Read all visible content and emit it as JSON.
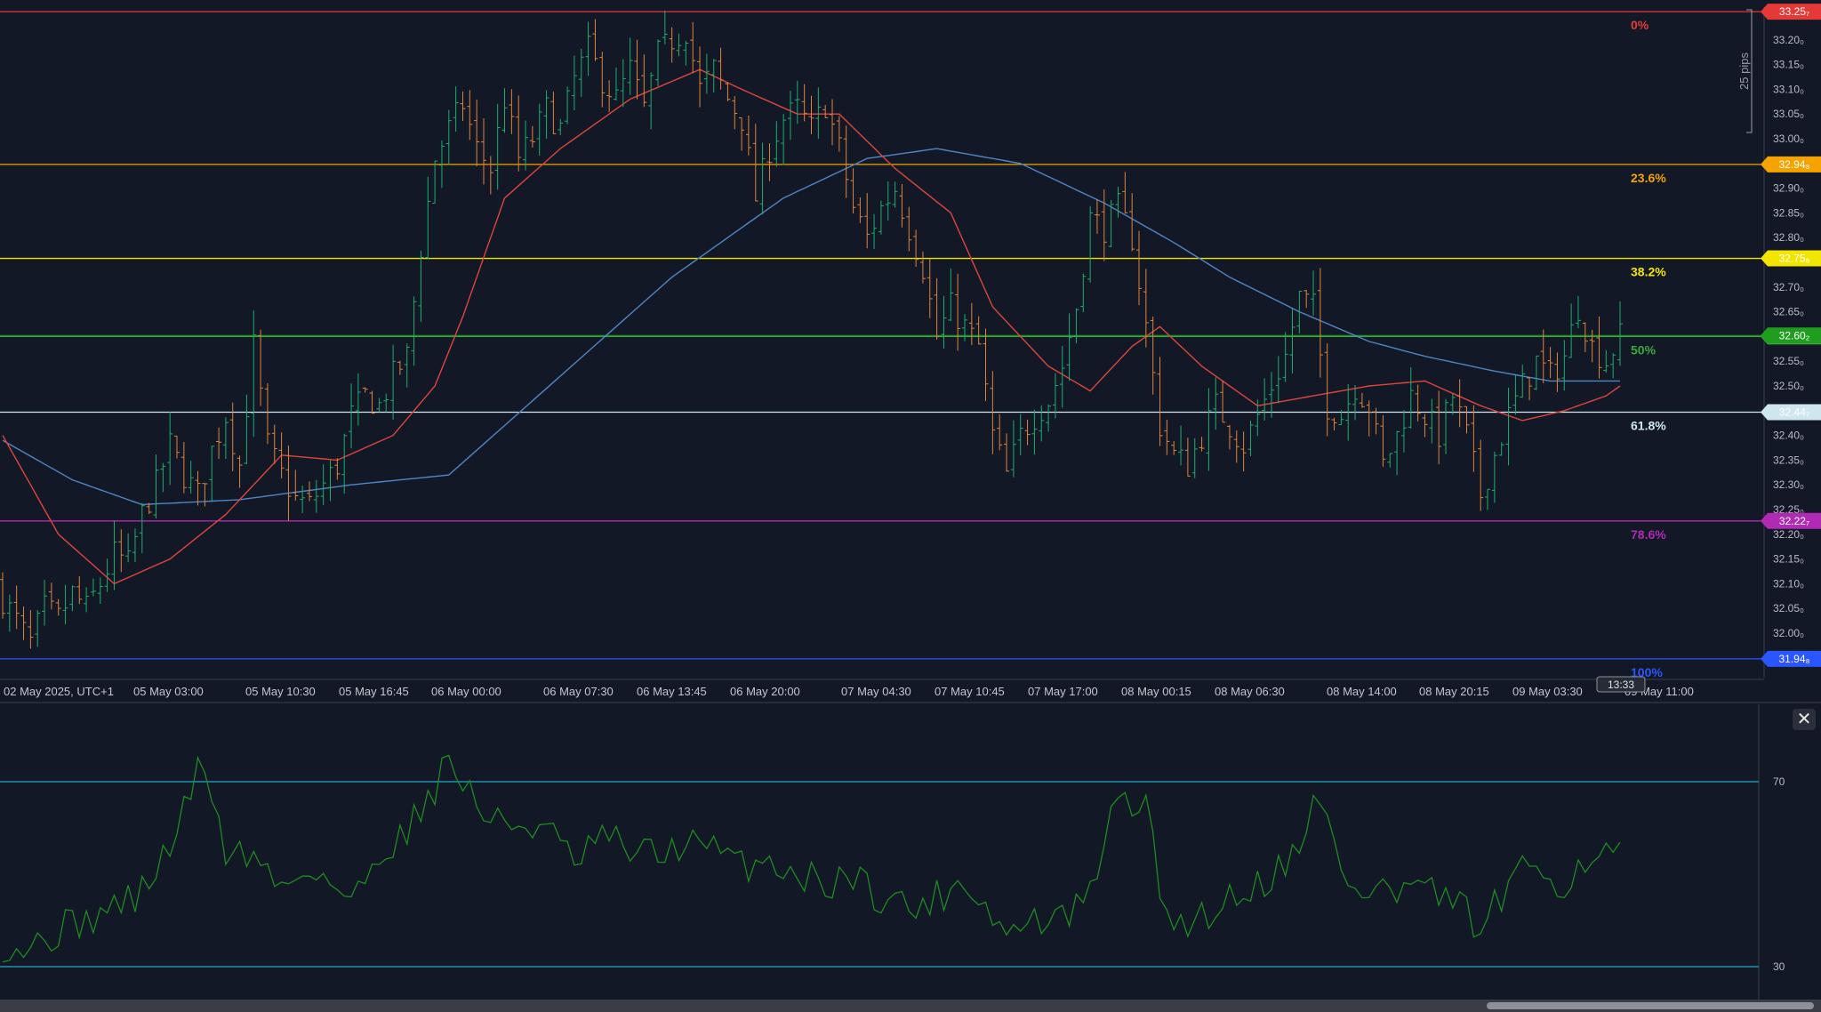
{
  "chart_data": [
    {
      "type": "candlestick",
      "title": "",
      "timezone_label": "02 May 2025, UTC+1",
      "x_tick_labels": [
        "02 May 2025, UTC+1",
        "05 May 03:00",
        "05 May 10:30",
        "05 May 16:45",
        "06 May 00:00",
        "06 May 07:30",
        "06 May 13:45",
        "06 May 20:00",
        "07 May 04:30",
        "07 May 10:45",
        "07 May 17:00",
        "08 May 00:15",
        "08 May 06:30",
        "08 May 14:00",
        "08 May 20:15",
        "09 May 03:30",
        "09 May 11:00"
      ],
      "crosshair_time_label": "13:33",
      "ylim": [
        31.92,
        33.28
      ],
      "y_ticks": [
        {
          "value": 33.2,
          "label": "33.20₀"
        },
        {
          "value": 33.15,
          "label": "33.15₀"
        },
        {
          "value": 33.1,
          "label": "33.10₀"
        },
        {
          "value": 33.05,
          "label": "33.05₀"
        },
        {
          "value": 33.0,
          "label": "33.00₀"
        },
        {
          "value": 32.9,
          "label": "32.90₀"
        },
        {
          "value": 32.85,
          "label": "32.85₀"
        },
        {
          "value": 32.8,
          "label": "32.80₀"
        },
        {
          "value": 32.7,
          "label": "32.70₀"
        },
        {
          "value": 32.65,
          "label": "32.65₀"
        },
        {
          "value": 32.55,
          "label": "32.55₀"
        },
        {
          "value": 32.5,
          "label": "32.50₀"
        },
        {
          "value": 32.4,
          "label": "32.40₀"
        },
        {
          "value": 32.35,
          "label": "32.35₀"
        },
        {
          "value": 32.3,
          "label": "32.30₀"
        },
        {
          "value": 32.25,
          "label": "32.25₀"
        },
        {
          "value": 32.2,
          "label": "32.20₀"
        },
        {
          "value": 32.15,
          "label": "32.15₀"
        },
        {
          "value": 32.1,
          "label": "32.10₀"
        },
        {
          "value": 32.05,
          "label": "32.05₀"
        },
        {
          "value": 32.0,
          "label": "32.00₀"
        }
      ],
      "measure_label": "25 pips",
      "fib_levels": [
        {
          "label": "0%",
          "price": 33.257,
          "price_label": "33.25₇",
          "color": "#e53935"
        },
        {
          "label": "23.6%",
          "price": 32.948,
          "price_label": "32.94₈",
          "color": "#f5a300"
        },
        {
          "label": "38.2%",
          "price": 32.758,
          "price_label": "32.75₈",
          "color": "#f2e600"
        },
        {
          "label": "50%",
          "price": 32.6,
          "price_label": "",
          "color": "#3aa83a"
        },
        {
          "label": "61.8%",
          "price": 32.447,
          "price_label": "32.44₇",
          "color": "#cfe6ee"
        },
        {
          "label": "78.6%",
          "price": 32.227,
          "price_label": "32.22₇",
          "color": "#b02ab4"
        },
        {
          "label": "100%",
          "price": 31.948,
          "price_label": "31.94₈",
          "color": "#2a55ff"
        }
      ],
      "current_price": {
        "value": 32.602,
        "label": "32.60₂",
        "color": "#1f9d1f"
      },
      "candle_colors": {
        "up": "#1fae6e",
        "down": "#e0843a"
      },
      "candle_keys_close": [
        [
          0,
          32.07
        ],
        [
          4,
          31.98
        ],
        [
          6,
          32.05
        ],
        [
          8,
          32.03
        ],
        [
          10,
          32.08
        ],
        [
          12,
          32.05
        ],
        [
          14,
          32.1
        ],
        [
          16,
          32.16
        ],
        [
          18,
          32.14
        ],
        [
          20,
          32.24
        ],
        [
          22,
          32.3
        ],
        [
          24,
          32.38
        ],
        [
          26,
          32.32
        ],
        [
          28,
          32.28
        ],
        [
          30,
          32.37
        ],
        [
          32,
          32.44
        ],
        [
          34,
          32.34
        ],
        [
          36,
          32.58
        ],
        [
          38,
          32.38
        ],
        [
          40,
          32.32
        ],
        [
          42,
          32.27
        ],
        [
          44,
          32.26
        ],
        [
          46,
          32.3
        ],
        [
          48,
          32.34
        ],
        [
          50,
          32.44
        ],
        [
          52,
          32.48
        ],
        [
          54,
          32.46
        ],
        [
          56,
          32.52
        ],
        [
          58,
          32.56
        ],
        [
          60,
          32.78
        ],
        [
          62,
          32.96
        ],
        [
          64,
          33.02
        ],
        [
          66,
          33.07
        ],
        [
          68,
          32.98
        ],
        [
          70,
          32.94
        ],
        [
          72,
          33.08
        ],
        [
          74,
          32.96
        ],
        [
          76,
          33.0
        ],
        [
          78,
          33.06
        ],
        [
          80,
          33.02
        ],
        [
          82,
          33.12
        ],
        [
          84,
          33.18
        ],
        [
          86,
          33.12
        ],
        [
          88,
          33.08
        ],
        [
          90,
          33.14
        ],
        [
          92,
          33.06
        ],
        [
          94,
          33.17
        ],
        [
          96,
          33.2
        ],
        [
          98,
          33.22
        ],
        [
          100,
          33.1
        ],
        [
          102,
          33.14
        ],
        [
          104,
          33.08
        ],
        [
          106,
          33.04
        ],
        [
          108,
          32.88
        ],
        [
          110,
          32.98
        ],
        [
          112,
          33.04
        ],
        [
          114,
          33.06
        ],
        [
          116,
          33.02
        ],
        [
          118,
          33.07
        ],
        [
          120,
          32.98
        ],
        [
          122,
          32.86
        ],
        [
          124,
          32.8
        ],
        [
          126,
          32.86
        ],
        [
          128,
          32.9
        ],
        [
          130,
          32.82
        ],
        [
          132,
          32.74
        ],
        [
          134,
          32.6
        ],
        [
          136,
          32.66
        ],
        [
          138,
          32.62
        ],
        [
          140,
          32.58
        ],
        [
          142,
          32.4
        ],
        [
          144,
          32.32
        ],
        [
          146,
          32.4
        ],
        [
          148,
          32.44
        ],
        [
          150,
          32.47
        ],
        [
          152,
          32.54
        ],
        [
          154,
          32.66
        ],
        [
          156,
          32.84
        ],
        [
          158,
          32.82
        ],
        [
          160,
          32.86
        ],
        [
          162,
          32.8
        ],
        [
          164,
          32.62
        ],
        [
          166,
          32.42
        ],
        [
          168,
          32.36
        ],
        [
          170,
          32.34
        ],
        [
          172,
          32.4
        ],
        [
          174,
          32.46
        ],
        [
          176,
          32.42
        ],
        [
          178,
          32.38
        ],
        [
          180,
          32.44
        ],
        [
          182,
          32.5
        ],
        [
          184,
          32.56
        ],
        [
          186,
          32.68
        ],
        [
          188,
          32.66
        ],
        [
          190,
          32.46
        ],
        [
          192,
          32.44
        ],
        [
          194,
          32.5
        ],
        [
          196,
          32.46
        ],
        [
          198,
          32.34
        ],
        [
          200,
          32.4
        ],
        [
          202,
          32.48
        ],
        [
          204,
          32.44
        ],
        [
          206,
          32.4
        ],
        [
          208,
          32.48
        ],
        [
          210,
          32.4
        ],
        [
          212,
          32.28
        ],
        [
          214,
          32.36
        ],
        [
          216,
          32.44
        ],
        [
          218,
          32.5
        ],
        [
          220,
          32.55
        ],
        [
          222,
          32.52
        ],
        [
          224,
          32.56
        ],
        [
          226,
          32.66
        ],
        [
          228,
          32.58
        ],
        [
          230,
          32.55
        ],
        [
          232,
          32.6
        ]
      ],
      "ema_fast_color": "#e0453a",
      "ema_fast": [
        [
          0,
          32.4
        ],
        [
          8,
          32.2
        ],
        [
          16,
          32.1
        ],
        [
          24,
          32.15
        ],
        [
          32,
          32.24
        ],
        [
          40,
          32.36
        ],
        [
          48,
          32.35
        ],
        [
          56,
          32.4
        ],
        [
          62,
          32.5
        ],
        [
          66,
          32.64
        ],
        [
          72,
          32.88
        ],
        [
          80,
          32.98
        ],
        [
          90,
          33.08
        ],
        [
          100,
          33.14
        ],
        [
          106,
          33.1
        ],
        [
          114,
          33.05
        ],
        [
          120,
          33.05
        ],
        [
          128,
          32.94
        ],
        [
          136,
          32.85
        ],
        [
          142,
          32.66
        ],
        [
          150,
          32.54
        ],
        [
          156,
          32.49
        ],
        [
          162,
          32.58
        ],
        [
          166,
          32.62
        ],
        [
          172,
          32.54
        ],
        [
          180,
          32.46
        ],
        [
          188,
          32.48
        ],
        [
          196,
          32.5
        ],
        [
          204,
          32.51
        ],
        [
          212,
          32.46
        ],
        [
          218,
          32.43
        ],
        [
          224,
          32.45
        ],
        [
          230,
          32.48
        ],
        [
          232,
          32.5
        ]
      ],
      "ema_slow_color": "#4f86c6",
      "ema_slow": [
        [
          0,
          32.39
        ],
        [
          10,
          32.31
        ],
        [
          20,
          32.26
        ],
        [
          34,
          32.27
        ],
        [
          50,
          32.3
        ],
        [
          64,
          32.32
        ],
        [
          80,
          32.52
        ],
        [
          96,
          32.72
        ],
        [
          112,
          32.88
        ],
        [
          124,
          32.96
        ],
        [
          134,
          32.98
        ],
        [
          146,
          32.95
        ],
        [
          158,
          32.87
        ],
        [
          168,
          32.79
        ],
        [
          176,
          32.72
        ],
        [
          186,
          32.65
        ],
        [
          196,
          32.59
        ],
        [
          204,
          32.56
        ],
        [
          214,
          32.53
        ],
        [
          222,
          32.51
        ],
        [
          232,
          32.51
        ]
      ]
    },
    {
      "type": "line",
      "title": "",
      "ylim": [
        21,
        85
      ],
      "y_ticks": [
        {
          "value": 70,
          "label": "70"
        },
        {
          "value": 30,
          "label": "30"
        }
      ],
      "levels": [
        {
          "value": 70,
          "color": "#2aa7c9"
        },
        {
          "value": 30,
          "color": "#2aa7c9"
        }
      ],
      "line_color": "#1e8c1e",
      "keys": [
        [
          0,
          35
        ],
        [
          4,
          34
        ],
        [
          8,
          38
        ],
        [
          12,
          40
        ],
        [
          16,
          43
        ],
        [
          20,
          46
        ],
        [
          24,
          56
        ],
        [
          28,
          72
        ],
        [
          30,
          68
        ],
        [
          32,
          55
        ],
        [
          36,
          54
        ],
        [
          40,
          47
        ],
        [
          44,
          52
        ],
        [
          48,
          47
        ],
        [
          50,
          43
        ],
        [
          54,
          55
        ],
        [
          58,
          59
        ],
        [
          60,
          65
        ],
        [
          62,
          69
        ],
        [
          64,
          75
        ],
        [
          66,
          70
        ],
        [
          70,
          61
        ],
        [
          74,
          61
        ],
        [
          78,
          60
        ],
        [
          82,
          52
        ],
        [
          86,
          58
        ],
        [
          90,
          55
        ],
        [
          94,
          54
        ],
        [
          98,
          57
        ],
        [
          102,
          55
        ],
        [
          106,
          52
        ],
        [
          110,
          53
        ],
        [
          114,
          50
        ],
        [
          118,
          48
        ],
        [
          122,
          50
        ],
        [
          126,
          45
        ],
        [
          128,
          45
        ],
        [
          130,
          42
        ],
        [
          134,
          45
        ],
        [
          138,
          49
        ],
        [
          142,
          41
        ],
        [
          144,
          37
        ],
        [
          148,
          40
        ],
        [
          152,
          40
        ],
        [
          156,
          45
        ],
        [
          158,
          58
        ],
        [
          160,
          65
        ],
        [
          162,
          66
        ],
        [
          164,
          64
        ],
        [
          166,
          47
        ],
        [
          168,
          39
        ],
        [
          172,
          41
        ],
        [
          176,
          45
        ],
        [
          180,
          48
        ],
        [
          184,
          52
        ],
        [
          186,
          58
        ],
        [
          188,
          65
        ],
        [
          190,
          62
        ],
        [
          192,
          50
        ],
        [
          196,
          45
        ],
        [
          198,
          48
        ],
        [
          200,
          45
        ],
        [
          204,
          49
        ],
        [
          206,
          42
        ],
        [
          208,
          45
        ],
        [
          210,
          42
        ],
        [
          212,
          36
        ],
        [
          214,
          43
        ],
        [
          216,
          46
        ],
        [
          218,
          50
        ],
        [
          220,
          52
        ],
        [
          224,
          48
        ],
        [
          228,
          55
        ],
        [
          230,
          54
        ],
        [
          232,
          54
        ]
      ]
    }
  ],
  "ui": {
    "close_icon": "close-icon"
  }
}
